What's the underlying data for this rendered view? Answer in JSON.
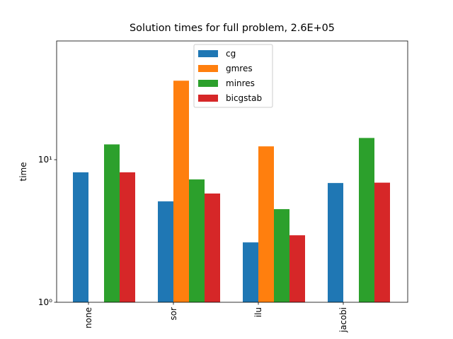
{
  "chart_data": {
    "type": "bar",
    "title": "Solution times for full problem, 2.6E+05",
    "ylabel": "time",
    "log_scale_y": true,
    "categories": [
      "none",
      "sor",
      "ilu",
      "jacobi"
    ],
    "series": [
      {
        "name": "cg",
        "color": "#1f77b4",
        "values": [
          8.15,
          5.1,
          2.63,
          6.86
        ]
      },
      {
        "name": "gmres",
        "color": "#ff7f0e",
        "values": [
          null,
          35.8,
          12.4,
          null
        ]
      },
      {
        "name": "minres",
        "color": "#2ca02c",
        "values": [
          12.8,
          7.27,
          4.5,
          14.2
        ]
      },
      {
        "name": "bicgstab",
        "color": "#d62728",
        "values": [
          8.15,
          5.79,
          2.95,
          6.9
        ]
      }
    ],
    "ylim": [
      1,
      68
    ],
    "yticks": [
      {
        "value": 1,
        "label": "10⁰"
      },
      {
        "value": 10,
        "label": "10¹"
      }
    ],
    "legend": "upper center"
  }
}
